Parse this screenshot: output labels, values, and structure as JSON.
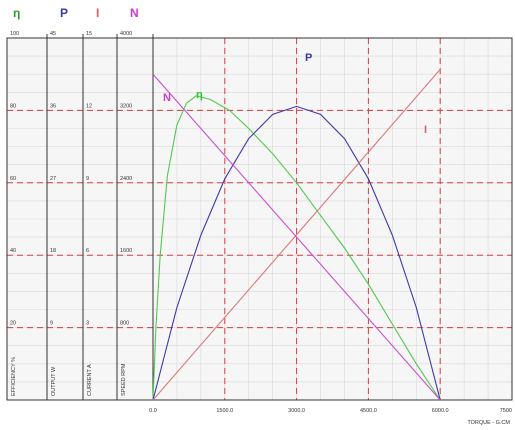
{
  "header": {
    "symbols": [
      {
        "label": "η",
        "color": "#2e9e2e"
      },
      {
        "label": "P",
        "color": "#3a3aa8"
      },
      {
        "label": "I",
        "color": "#d2646a"
      },
      {
        "label": "N",
        "color": "#c93ccf"
      }
    ]
  },
  "chart_data": {
    "type": "line",
    "xlabel": "TORQUE - G.CM",
    "x_ticks": [
      "0.0",
      "1500.0",
      "3000.0",
      "4500.0",
      "6000.0",
      "7500"
    ],
    "xlim": [
      0,
      7500
    ],
    "grid": true,
    "axes": [
      {
        "name": "EFFICIENCY %",
        "ticks": [
          "20",
          "40",
          "60",
          "80",
          "100"
        ],
        "range": [
          0,
          100
        ]
      },
      {
        "name": "OUTPUT W",
        "ticks": [
          "9",
          "18",
          "27",
          "36",
          "45"
        ],
        "range": [
          0,
          45
        ]
      },
      {
        "name": "CURRENT A",
        "ticks": [
          "3",
          "6",
          "9",
          "12",
          "15"
        ],
        "range": [
          0,
          15
        ]
      },
      {
        "name": "SPEED RPM",
        "ticks": [
          "800",
          "1600",
          "2400",
          "3200",
          "4000"
        ],
        "range": [
          0,
          4000
        ]
      }
    ],
    "series": [
      {
        "name": "η",
        "color": "#52c852",
        "label_color": "#2ec82e",
        "axis": "EFFICIENCY %",
        "points": [
          [
            0,
            0
          ],
          [
            60,
            20
          ],
          [
            150,
            40
          ],
          [
            300,
            62
          ],
          [
            500,
            76
          ],
          [
            700,
            82
          ],
          [
            900,
            84
          ],
          [
            1200,
            83
          ],
          [
            1600,
            80
          ],
          [
            2000,
            75
          ],
          [
            2500,
            68
          ],
          [
            3000,
            60
          ],
          [
            3500,
            51
          ],
          [
            4000,
            42
          ],
          [
            4500,
            32
          ],
          [
            5000,
            21
          ],
          [
            5500,
            10
          ],
          [
            6000,
            0
          ]
        ]
      },
      {
        "name": "P",
        "color": "#3a3aaa",
        "label_color": "#3a3aa8",
        "axis": "OUTPUT W",
        "points": [
          [
            0,
            0
          ],
          [
            500,
            11.5
          ],
          [
            1000,
            20.5
          ],
          [
            1500,
            27.5
          ],
          [
            2000,
            32.5
          ],
          [
            2500,
            35.5
          ],
          [
            3000,
            36.5
          ],
          [
            3500,
            35.5
          ],
          [
            4000,
            32.5
          ],
          [
            4500,
            27.5
          ],
          [
            5000,
            20.5
          ],
          [
            5500,
            11.5
          ],
          [
            6000,
            0
          ]
        ]
      },
      {
        "name": "I",
        "color": "#d87a7a",
        "label_color": "#d2646a",
        "axis": "CURRENT A",
        "points": [
          [
            0,
            0
          ],
          [
            6000,
            13.7
          ]
        ]
      },
      {
        "name": "N",
        "color": "#c94ed0",
        "label_color": "#c93ccf",
        "axis": "SPEED RPM",
        "points": [
          [
            0,
            3600
          ],
          [
            6000,
            0
          ]
        ]
      }
    ]
  }
}
